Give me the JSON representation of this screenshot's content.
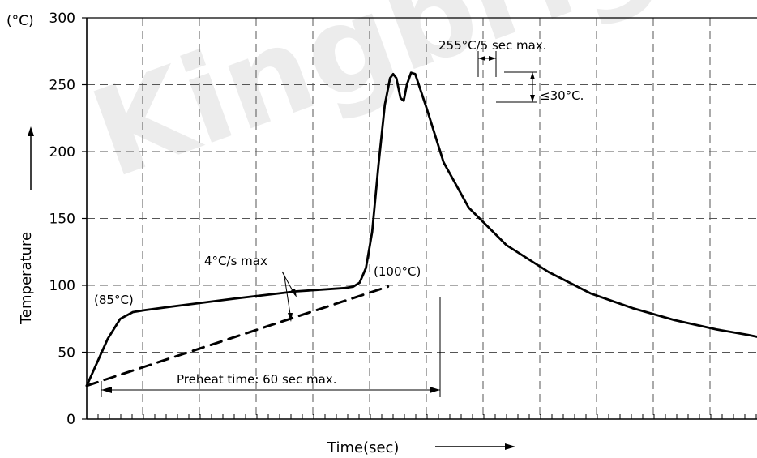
{
  "chart_data": {
    "type": "line",
    "title": "",
    "xlabel": "Time(sec)",
    "ylabel": "Temperature",
    "y_unit_label": "(°C)",
    "ylim": [
      0,
      300
    ],
    "yticks": [
      0,
      50,
      100,
      150,
      200,
      250,
      300
    ],
    "grid": true,
    "watermark": "Kingbright",
    "series": [
      {
        "style": "solid",
        "points": [
          [
            0,
            25
          ],
          [
            1.0,
            60
          ],
          [
            1.6,
            75
          ],
          [
            2.2,
            80
          ],
          [
            2.8,
            81.5
          ],
          [
            4.0,
            84
          ],
          [
            7.0,
            90
          ],
          [
            10.0,
            95.5
          ],
          [
            12.3,
            98
          ],
          [
            12.7,
            99
          ],
          [
            13.0,
            102
          ],
          [
            13.3,
            113
          ],
          [
            13.6,
            140
          ],
          [
            13.9,
            190
          ],
          [
            14.2,
            235
          ],
          [
            14.45,
            255
          ],
          [
            14.6,
            258
          ],
          [
            14.75,
            255
          ],
          [
            14.95,
            240
          ],
          [
            15.1,
            238
          ],
          [
            15.25,
            250
          ],
          [
            15.45,
            259
          ],
          [
            15.65,
            258
          ],
          [
            16.2,
            232
          ],
          [
            17.0,
            192
          ],
          [
            18.2,
            158
          ],
          [
            20.0,
            130
          ],
          [
            22.0,
            110
          ],
          [
            24.0,
            94
          ],
          [
            26.0,
            83
          ],
          [
            28.0,
            74
          ],
          [
            30.0,
            67
          ],
          [
            31.5,
            63
          ],
          [
            32.1,
            61
          ]
        ]
      },
      {
        "style": "dashed",
        "points": [
          [
            0,
            25
          ],
          [
            14.35,
            99
          ]
        ]
      }
    ],
    "annotations": {
      "t85": "(85°C)",
      "t100": "(100°C)",
      "ramp": "4°C/s max",
      "preheat": "Preheat time: 60 sec max.",
      "peak": "255°C/5 sec max.",
      "delta": "≤30°C."
    }
  }
}
